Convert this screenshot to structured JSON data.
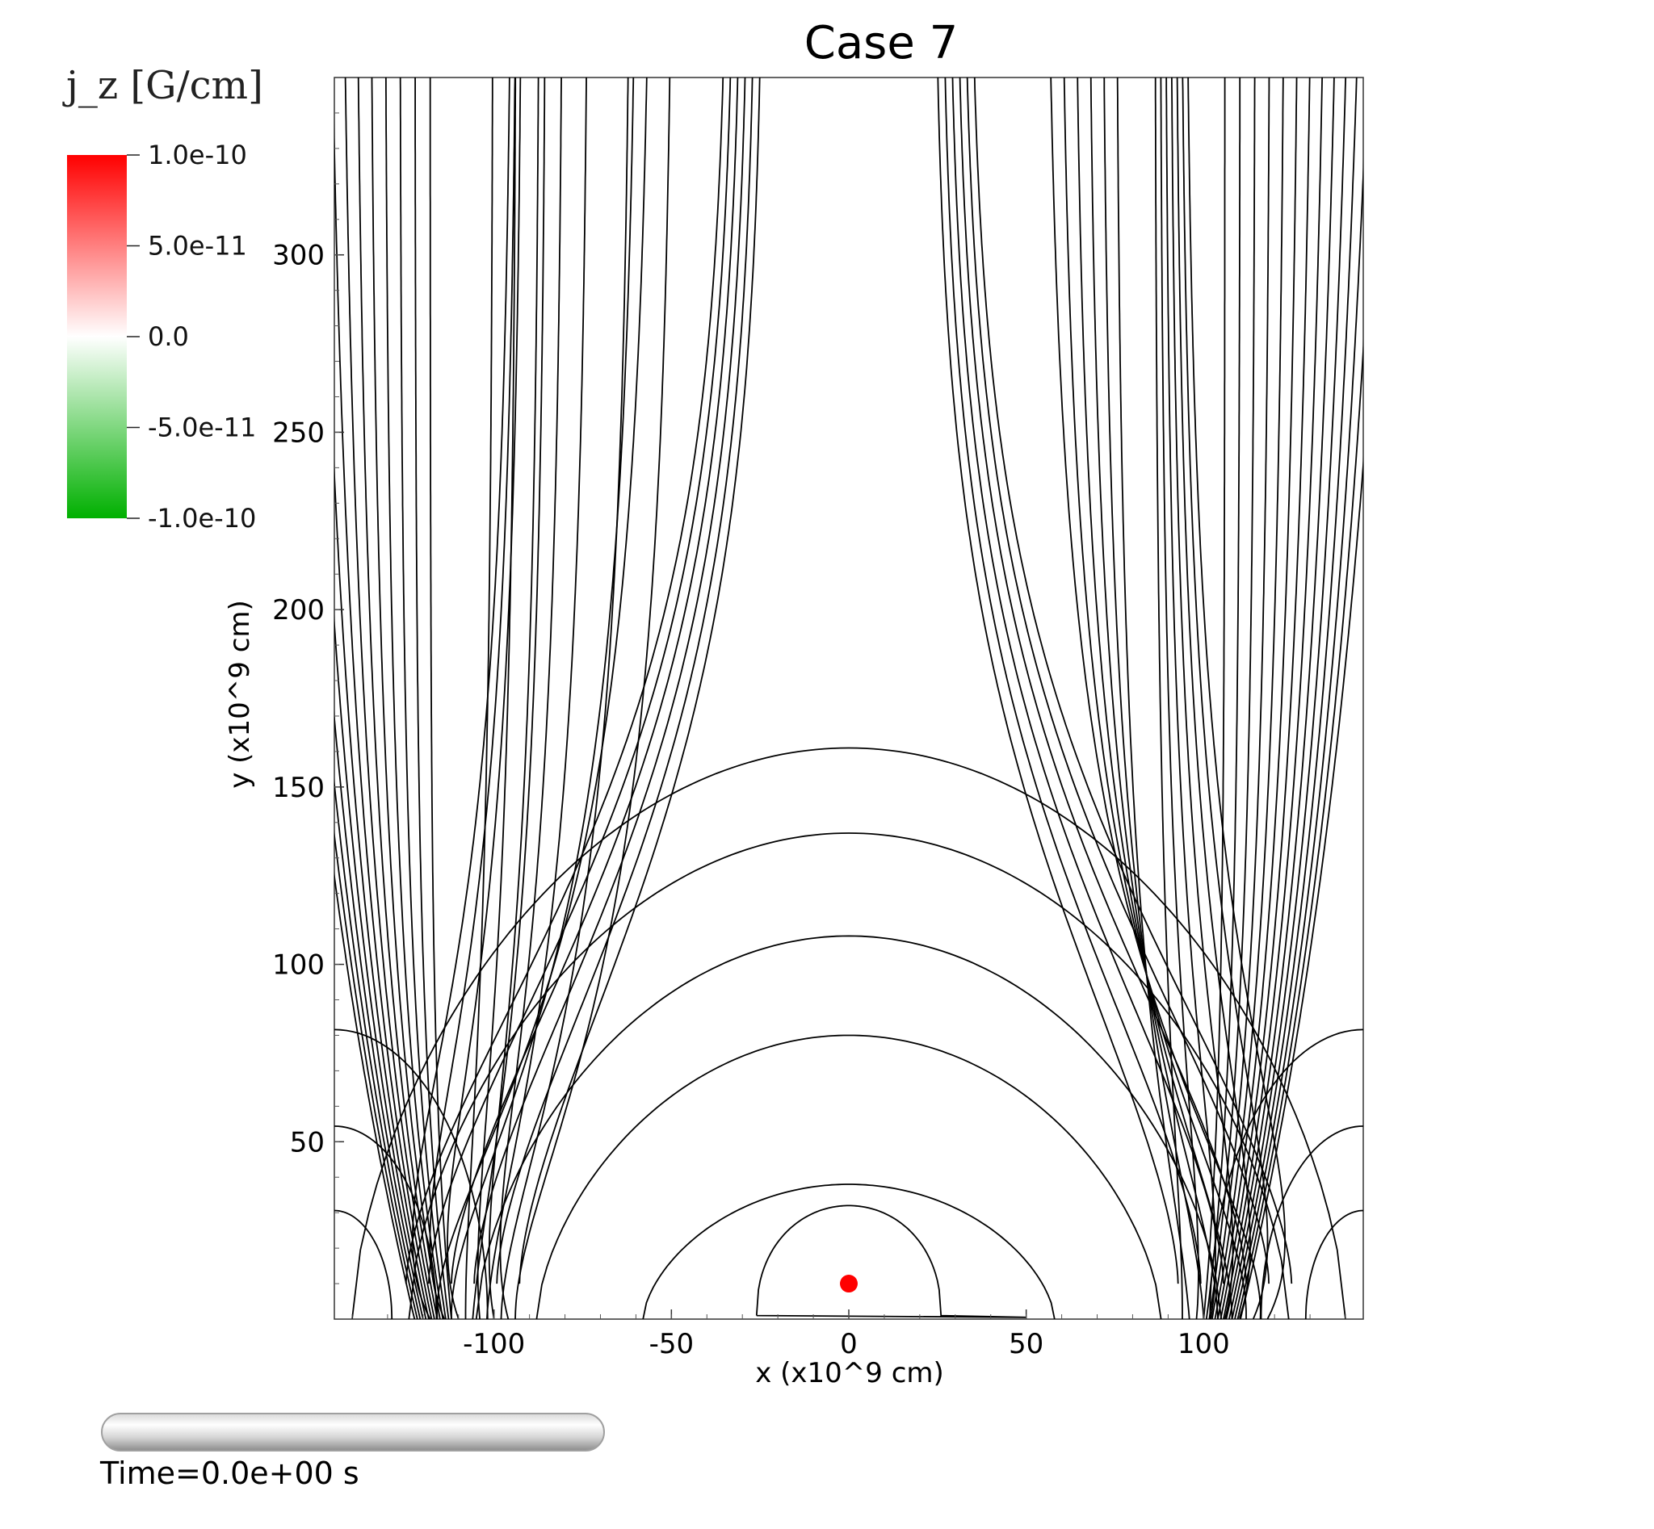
{
  "chart_data": {
    "type": "line",
    "title": "Case 7",
    "xlabel": "x (x10^9 cm)",
    "ylabel": "y (x10^9 cm)",
    "xlim": [
      -145,
      145
    ],
    "ylim": [
      0,
      350
    ],
    "xticks": [
      -100,
      -50,
      0,
      50,
      100
    ],
    "xtick_labels": [
      "-100",
      "-50",
      "0",
      "50",
      "100"
    ],
    "yticks": [
      50,
      100,
      150,
      200,
      250,
      300
    ],
    "ytick_labels": [
      "50",
      "100",
      "150",
      "200",
      "250",
      "300"
    ],
    "grid": false,
    "legend": "none",
    "line_color": "#000000",
    "marker": {
      "x": 0,
      "y": 10,
      "color": "#ff0000"
    },
    "closed_loops": [
      {
        "peak_y": 161,
        "half_width": 140
      },
      {
        "peak_y": 137,
        "half_width": 124
      },
      {
        "peak_y": 108,
        "half_width": 105
      },
      {
        "peak_y": 80,
        "half_width": 88
      },
      {
        "peak_y": 38,
        "half_width": 58
      }
    ],
    "open_field_lines": {
      "left_footpoints_x": [
        -108,
        -106,
        -104,
        -102,
        -100,
        -98,
        -96,
        -94,
        -110,
        -112,
        -114,
        -116,
        -118
      ],
      "right_footpoints_x": [
        94,
        96,
        98,
        100,
        102,
        104,
        106,
        108,
        110,
        112,
        114,
        116,
        118
      ]
    },
    "colorbar": {
      "title": "j_z [G/cm]",
      "range": [
        -1e-10,
        1e-10
      ],
      "tick_labels": [
        "1.0e-10",
        "5.0e-11",
        "0.0",
        "-5.0e-11",
        "-1.0e-10"
      ],
      "colors": {
        "max": "#ff0000",
        "mid": "#ffffff",
        "min": "#00b000"
      }
    }
  },
  "time_label": "Time=0.0e+00 s"
}
